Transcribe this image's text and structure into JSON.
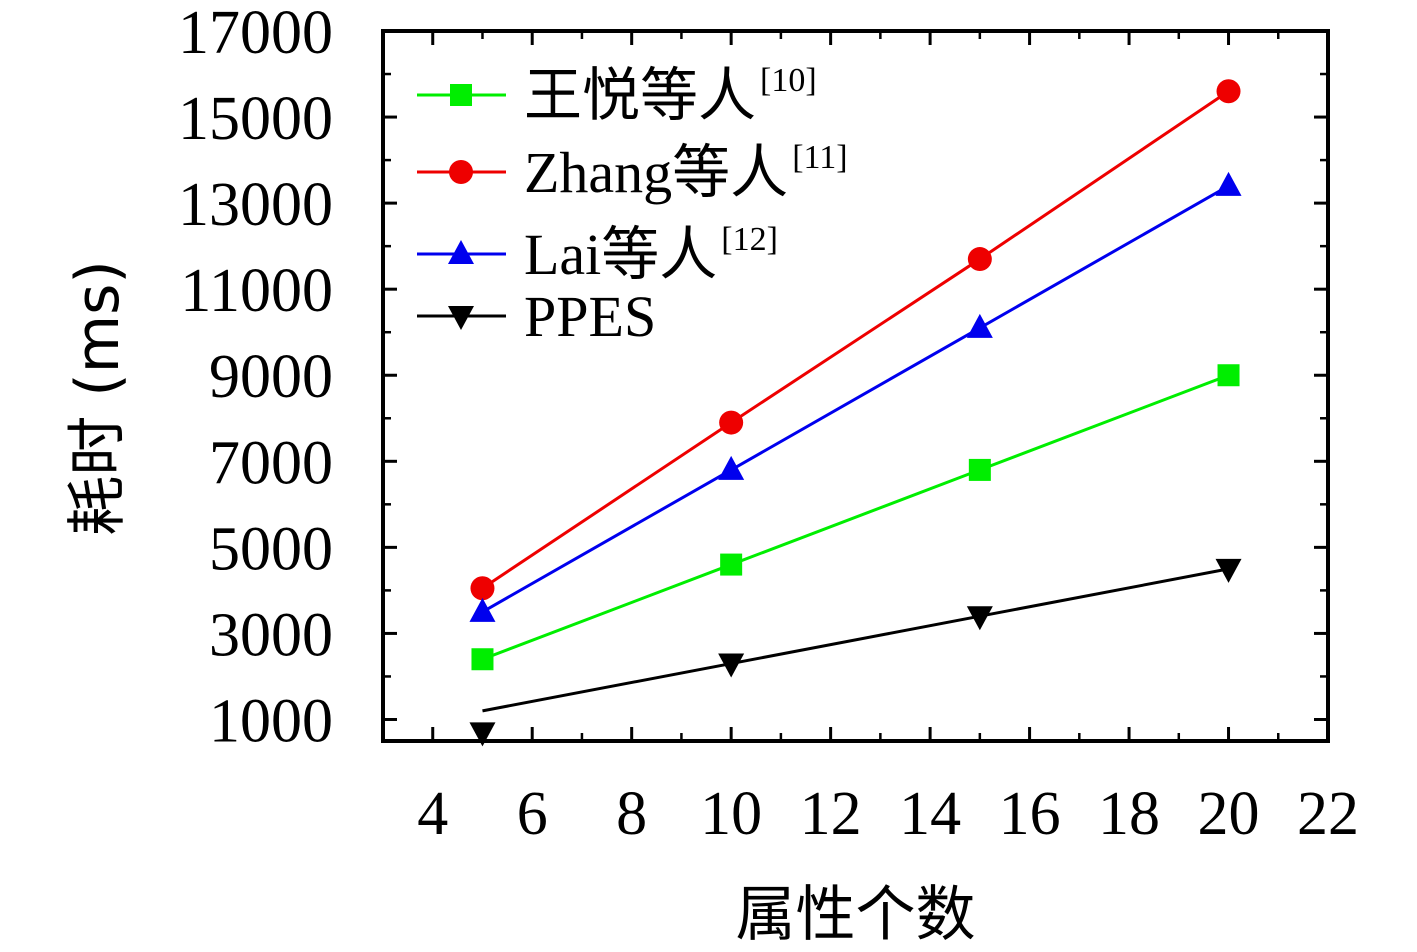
{
  "chart_data": {
    "type": "line",
    "title": "",
    "xlabel": "属性个数",
    "ylabel": "耗时 (ms)",
    "xlim": [
      3,
      22
    ],
    "ylim": [
      500,
      17000
    ],
    "x_ticks": [
      4,
      6,
      8,
      10,
      12,
      14,
      16,
      18,
      20,
      22
    ],
    "y_ticks": [
      1000,
      3000,
      5000,
      7000,
      9000,
      11000,
      13000,
      15000,
      17000
    ],
    "grid": false,
    "legend_position": "top-left",
    "x": [
      5,
      10,
      15,
      20
    ],
    "series": [
      {
        "name": "王悦等人",
        "ref": "[10]",
        "color": "#00ee00",
        "marker": "square",
        "values": [
          2400,
          4600,
          6800,
          9000
        ]
      },
      {
        "name": "Zhang等人",
        "ref": "[11]",
        "color": "#ee0000",
        "marker": "circle",
        "values": [
          4050,
          7900,
          11700,
          15600
        ]
      },
      {
        "name": "Lai等人",
        "ref": "[12]",
        "color": "#0000ee",
        "marker": "triangle-up",
        "values": [
          3500,
          6800,
          10100,
          13400
        ]
      },
      {
        "name": "PPES",
        "ref": "",
        "color": "#000000",
        "marker": "triangle-down",
        "values": [
          700,
          2300,
          3400,
          4500
        ],
        "line_values": [
          1200,
          2300,
          3400,
          4500
        ]
      }
    ]
  }
}
